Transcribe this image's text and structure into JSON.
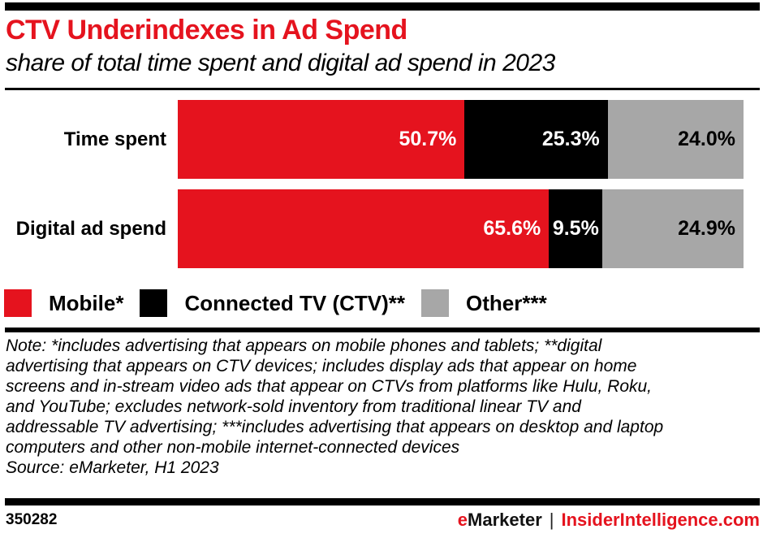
{
  "colors": {
    "red": "#E5131E",
    "gray": "#A7A7A7",
    "black": "#000000"
  },
  "header": {
    "title": "CTV Underindexes in Ad Spend",
    "subtitle": "share of total time spent and digital ad spend in 2023"
  },
  "chart_data": {
    "type": "bar",
    "orientation": "horizontal",
    "stacked": true,
    "unit": "%",
    "xlim": [
      0,
      100
    ],
    "grid": false,
    "legend_position": "bottom-left",
    "categories": [
      "Time spent",
      "Digital ad spend"
    ],
    "series": [
      {
        "name": "Mobile*",
        "color": "#E5131E",
        "label_color": "#FFFFFF",
        "values": [
          50.7,
          65.6
        ]
      },
      {
        "name": "Connected TV (CTV)**",
        "color": "#000000",
        "label_color": "#FFFFFF",
        "values": [
          25.3,
          9.5
        ]
      },
      {
        "name": "Other***",
        "color": "#A7A7A7",
        "label_color": "#000000",
        "values": [
          24.0,
          24.9
        ]
      }
    ],
    "value_labels": [
      [
        "50.7%",
        "25.3%",
        "24.0%"
      ],
      [
        "65.6%",
        "9.5%",
        "24.9%"
      ]
    ]
  },
  "note": {
    "lines": [
      "Note: *includes advertising that appears on mobile phones and tablets; **digital",
      "advertising that appears on CTV devices; includes display ads that appear on home",
      "screens and in-stream video ads that appear on CTVs from platforms like Hulu, Roku,",
      "and YouTube; excludes network-sold inventory from traditional linear TV and",
      "addressable TV advertising; ***includes advertising that appears on desktop and laptop",
      "computers and other non-mobile internet-connected devices"
    ],
    "source": "Source: eMarketer, H1 2023"
  },
  "footer": {
    "chart_id": "350282",
    "brand": "eMarketer",
    "separator": "|",
    "site": "InsiderIntelligence.com"
  }
}
